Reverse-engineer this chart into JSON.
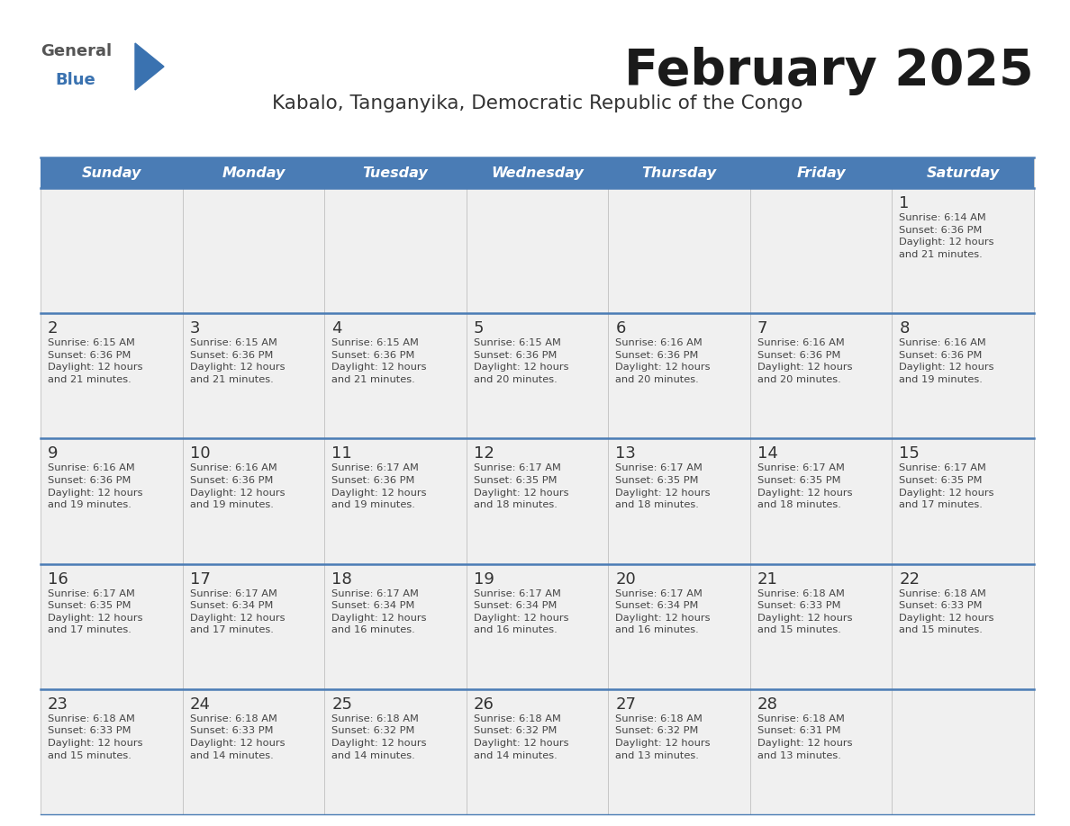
{
  "title": "February 2025",
  "subtitle": "Kabalo, Tanganyika, Democratic Republic of the Congo",
  "days_of_week": [
    "Sunday",
    "Monday",
    "Tuesday",
    "Wednesday",
    "Thursday",
    "Friday",
    "Saturday"
  ],
  "header_bg": "#4a7cb5",
  "header_text": "#ffffff",
  "cell_bg": "#f0f0f0",
  "separator_color": "#4a7cb5",
  "separator_color_thin": "#a0b8d8",
  "title_color": "#1a1a1a",
  "subtitle_color": "#333333",
  "day_number_color": "#333333",
  "info_color": "#444444",
  "logo_general_color": "#555555",
  "logo_blue_color": "#3a72b0",
  "logo_triangle_color": "#3a72b0",
  "calendar": [
    [
      null,
      null,
      null,
      null,
      null,
      null,
      {
        "day": 1,
        "sunrise": "6:14 AM",
        "sunset": "6:36 PM",
        "daylight": "12 hours and 21 minutes."
      }
    ],
    [
      {
        "day": 2,
        "sunrise": "6:15 AM",
        "sunset": "6:36 PM",
        "daylight": "12 hours and 21 minutes."
      },
      {
        "day": 3,
        "sunrise": "6:15 AM",
        "sunset": "6:36 PM",
        "daylight": "12 hours and 21 minutes."
      },
      {
        "day": 4,
        "sunrise": "6:15 AM",
        "sunset": "6:36 PM",
        "daylight": "12 hours and 21 minutes."
      },
      {
        "day": 5,
        "sunrise": "6:15 AM",
        "sunset": "6:36 PM",
        "daylight": "12 hours and 20 minutes."
      },
      {
        "day": 6,
        "sunrise": "6:16 AM",
        "sunset": "6:36 PM",
        "daylight": "12 hours and 20 minutes."
      },
      {
        "day": 7,
        "sunrise": "6:16 AM",
        "sunset": "6:36 PM",
        "daylight": "12 hours and 20 minutes."
      },
      {
        "day": 8,
        "sunrise": "6:16 AM",
        "sunset": "6:36 PM",
        "daylight": "12 hours and 19 minutes."
      }
    ],
    [
      {
        "day": 9,
        "sunrise": "6:16 AM",
        "sunset": "6:36 PM",
        "daylight": "12 hours and 19 minutes."
      },
      {
        "day": 10,
        "sunrise": "6:16 AM",
        "sunset": "6:36 PM",
        "daylight": "12 hours and 19 minutes."
      },
      {
        "day": 11,
        "sunrise": "6:17 AM",
        "sunset": "6:36 PM",
        "daylight": "12 hours and 19 minutes."
      },
      {
        "day": 12,
        "sunrise": "6:17 AM",
        "sunset": "6:35 PM",
        "daylight": "12 hours and 18 minutes."
      },
      {
        "day": 13,
        "sunrise": "6:17 AM",
        "sunset": "6:35 PM",
        "daylight": "12 hours and 18 minutes."
      },
      {
        "day": 14,
        "sunrise": "6:17 AM",
        "sunset": "6:35 PM",
        "daylight": "12 hours and 18 minutes."
      },
      {
        "day": 15,
        "sunrise": "6:17 AM",
        "sunset": "6:35 PM",
        "daylight": "12 hours and 17 minutes."
      }
    ],
    [
      {
        "day": 16,
        "sunrise": "6:17 AM",
        "sunset": "6:35 PM",
        "daylight": "12 hours and 17 minutes."
      },
      {
        "day": 17,
        "sunrise": "6:17 AM",
        "sunset": "6:34 PM",
        "daylight": "12 hours and 17 minutes."
      },
      {
        "day": 18,
        "sunrise": "6:17 AM",
        "sunset": "6:34 PM",
        "daylight": "12 hours and 16 minutes."
      },
      {
        "day": 19,
        "sunrise": "6:17 AM",
        "sunset": "6:34 PM",
        "daylight": "12 hours and 16 minutes."
      },
      {
        "day": 20,
        "sunrise": "6:17 AM",
        "sunset": "6:34 PM",
        "daylight": "12 hours and 16 minutes."
      },
      {
        "day": 21,
        "sunrise": "6:18 AM",
        "sunset": "6:33 PM",
        "daylight": "12 hours and 15 minutes."
      },
      {
        "day": 22,
        "sunrise": "6:18 AM",
        "sunset": "6:33 PM",
        "daylight": "12 hours and 15 minutes."
      }
    ],
    [
      {
        "day": 23,
        "sunrise": "6:18 AM",
        "sunset": "6:33 PM",
        "daylight": "12 hours and 15 minutes."
      },
      {
        "day": 24,
        "sunrise": "6:18 AM",
        "sunset": "6:33 PM",
        "daylight": "12 hours and 14 minutes."
      },
      {
        "day": 25,
        "sunrise": "6:18 AM",
        "sunset": "6:32 PM",
        "daylight": "12 hours and 14 minutes."
      },
      {
        "day": 26,
        "sunrise": "6:18 AM",
        "sunset": "6:32 PM",
        "daylight": "12 hours and 14 minutes."
      },
      {
        "day": 27,
        "sunrise": "6:18 AM",
        "sunset": "6:32 PM",
        "daylight": "12 hours and 13 minutes."
      },
      {
        "day": 28,
        "sunrise": "6:18 AM",
        "sunset": "6:31 PM",
        "daylight": "12 hours and 13 minutes."
      },
      null
    ]
  ]
}
